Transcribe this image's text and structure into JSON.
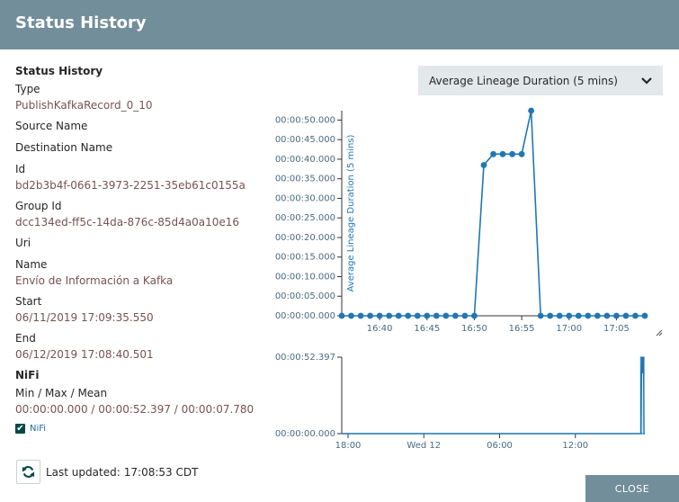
{
  "header": {
    "title": "Status History"
  },
  "details": {
    "section_title": "Status History",
    "type_label": "Type",
    "type_value": "PublishKafkaRecord_0_10",
    "source_name_label": "Source Name",
    "destination_name_label": "Destination Name",
    "id_label": "Id",
    "id_value": "bd2b3b4f-0661-3973-2251-35eb61c0155a",
    "group_id_label": "Group Id",
    "group_id_value": "dcc134ed-ff5c-14da-876c-85d4a0a10e16",
    "uri_label": "Uri",
    "name_label": "Name",
    "name_value": "Envío de Información a Kafka",
    "start_label": "Start",
    "start_value": "06/11/2019 17:09:35.550",
    "end_label": "End",
    "end_value": "06/12/2019 17:08:40.501",
    "nifi_title": "NiFi",
    "min_max_mean_label": "Min / Max / Mean",
    "min_max_mean_value": "00:00:00.000 / 00:00:52.397 / 00:00:07.780",
    "nifi_checkbox_label": "NiFi"
  },
  "refresh": {
    "label": "Last updated:",
    "timestamp": "17:08:53 CDT"
  },
  "metric_select": {
    "selected": "Average Lineage Duration (5 mins)"
  },
  "close_label": "CLOSE",
  "colors": {
    "header_bg": "#728e9b",
    "series": "#1f77b4",
    "value_text": "#775351"
  },
  "chart_data": [
    {
      "type": "line",
      "ylabel": "Average Lineage Duration (5 mins)",
      "y_tick_labels": [
        "00:00:00.000",
        "00:00:05.000",
        "00:00:10.000",
        "00:00:15.000",
        "00:00:20.000",
        "00:00:25.000",
        "00:00:30.000",
        "00:00:35.000",
        "00:00:40.000",
        "00:00:45.000",
        "00:00:50.000"
      ],
      "y_tick_values": [
        0,
        5,
        10,
        15,
        20,
        25,
        30,
        35,
        40,
        45,
        50
      ],
      "x_tick_labels": [
        "16:40",
        "16:45",
        "16:50",
        "16:55",
        "17:00",
        "17:05"
      ],
      "x_tick_values": [
        1000,
        1005,
        1010,
        1015,
        1020,
        1025
      ],
      "xlim": [
        996,
        1028
      ],
      "ylim": [
        0,
        52.4
      ],
      "series": [
        {
          "x": [
            996,
            997,
            998,
            999,
            1000,
            1001,
            1002,
            1003,
            1004,
            1005,
            1006,
            1007,
            1008,
            1009,
            1010,
            1011,
            1012,
            1013,
            1014,
            1015,
            1016,
            1017,
            1018,
            1019,
            1020,
            1021,
            1022,
            1023,
            1024,
            1025,
            1026,
            1027,
            1028
          ],
          "y": [
            0,
            0,
            0,
            0,
            0,
            0,
            0,
            0,
            0,
            0,
            0,
            0,
            0,
            0,
            0,
            38.5,
            41.3,
            41.3,
            41.3,
            41.3,
            52.4,
            0,
            0,
            0,
            0,
            0,
            0,
            0,
            0,
            0,
            0,
            0,
            0
          ]
        }
      ]
    },
    {
      "type": "line",
      "y_tick_labels": [
        "00:00:00.000",
        "00:00:52.397"
      ],
      "y_tick_values": [
        0,
        52.397
      ],
      "x_tick_labels": [
        "18:00",
        "Wed 12",
        "06:00",
        "12:00"
      ],
      "x_tick_values": [
        1080,
        1440,
        1800,
        2160
      ],
      "xlim": [
        1050,
        2490
      ],
      "ylim": [
        0,
        52.4
      ],
      "series": [
        {
          "x": [
            1050,
            2472,
            2474,
            2476,
            2478,
            2480,
            2482,
            2484,
            2486,
            2490
          ],
          "y": [
            0,
            0,
            38.5,
            52.4,
            41.3,
            52.4,
            41.3,
            52.4,
            0,
            0
          ]
        }
      ]
    }
  ]
}
